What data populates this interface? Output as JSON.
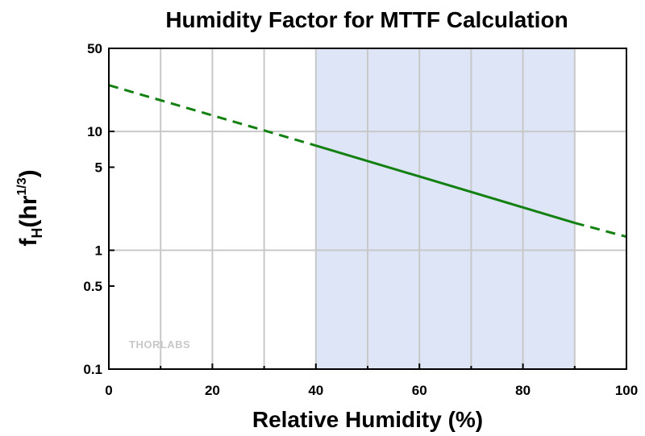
{
  "colors": {
    "background": "#ffffff",
    "shade": "#dde5f6",
    "grid": "#c8c8c8",
    "line": "#138012",
    "axis": "#000000",
    "logo": "#c8c8c8"
  },
  "watermark": {
    "text": "THORLABS"
  },
  "chart_data": {
    "type": "line",
    "title": "Humidity Factor for MTTF Calculation",
    "xlabel": "Relative Humidity (%)",
    "ylabel": {
      "base": "f",
      "subscript": "H",
      "unit_open": "(hr",
      "superscript": "1/3",
      "unit_close": ")"
    },
    "xlim": [
      0,
      100
    ],
    "ylim": [
      0.1,
      50
    ],
    "y_scale": "log",
    "x_ticks": [
      0,
      20,
      40,
      60,
      80,
      100
    ],
    "x_tick_labels": [
      "0",
      "20",
      "40",
      "60",
      "80",
      "100"
    ],
    "x_minor_ticks": [
      10,
      30,
      50,
      70,
      90
    ],
    "y_ticks": [
      0.1,
      0.5,
      1,
      5,
      10,
      50
    ],
    "y_tick_labels": [
      "0.1",
      "0.5",
      "1",
      "5",
      "10",
      "50"
    ],
    "x_grid": [
      10,
      20,
      30,
      40,
      50,
      60,
      70,
      80,
      90
    ],
    "y_grid": [
      1,
      10
    ],
    "grid": true,
    "shaded_region": {
      "x": [
        40,
        90
      ]
    },
    "series": [
      {
        "style": "dashed",
        "x": [
          0,
          40
        ],
        "y": [
          24.5,
          7.6
        ]
      },
      {
        "style": "solid",
        "x": [
          40,
          90
        ],
        "y": [
          7.6,
          1.7
        ]
      },
      {
        "style": "dashed",
        "x": [
          90,
          100
        ],
        "y": [
          1.7,
          1.3
        ]
      }
    ]
  }
}
